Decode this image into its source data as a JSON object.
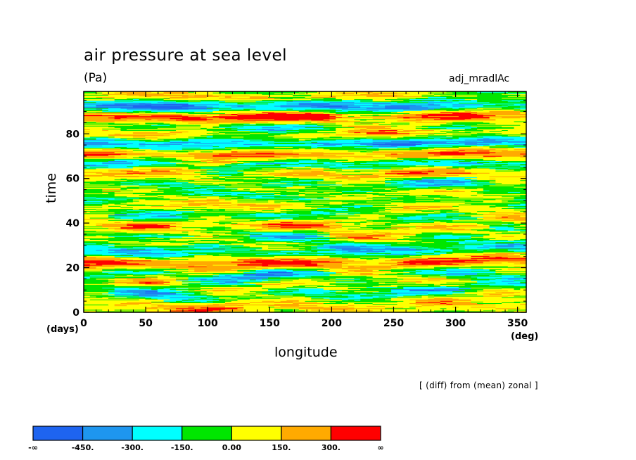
{
  "header": {
    "title": "air pressure at sea level",
    "units": "(Pa)",
    "experiment": "adj_mradlAc",
    "note": "[ (diff) from (mean) zonal ]"
  },
  "chart_data": {
    "type": "heatmap",
    "title": "air pressure at sea level",
    "xlabel": "longitude",
    "ylabel": "time",
    "x_units": "(deg)",
    "y_units": "(days)",
    "xlim": [
      0,
      357
    ],
    "ylim": [
      0,
      99
    ],
    "x_ticks": [
      0,
      50,
      100,
      150,
      200,
      250,
      300,
      350
    ],
    "y_ticks": [
      0,
      20,
      40,
      60,
      80
    ],
    "levels": [
      "-∞",
      "-450.",
      "-300.",
      "-150.",
      "0.00",
      "150.",
      "300.",
      "∞"
    ],
    "bins": [
      {
        "range": "< -450",
        "color": "#1e64f0"
      },
      {
        "range": "-450 to -300",
        "color": "#1e96ef"
      },
      {
        "range": "-300 to -150",
        "color": "#00ffff"
      },
      {
        "range": "-150 to 0",
        "color": "#00e600"
      },
      {
        "range": "0 to 150",
        "color": "#ffff00"
      },
      {
        "range": "150 to 300",
        "color": "#ffaa00"
      },
      {
        "range": "> 300",
        "color": "#ff0000"
      }
    ],
    "grid": false,
    "colorbar_placement": "bottom"
  }
}
